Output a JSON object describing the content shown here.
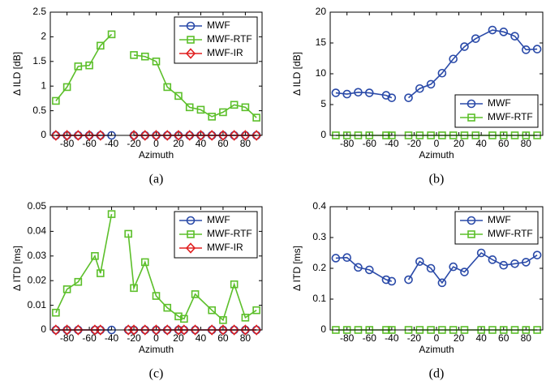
{
  "chart_data": [
    {
      "type": "line",
      "caption": "(a)",
      "xlabel": "Azimuth",
      "ylabel": "Δ ILD [dB]",
      "x": [
        -90,
        -80,
        -70,
        -60,
        -50,
        -40,
        -30,
        -20,
        -10,
        0,
        10,
        20,
        30,
        40,
        50,
        60,
        70,
        80,
        90
      ],
      "xlim": [
        -95,
        95
      ],
      "xticks": [
        -80,
        -60,
        -40,
        -20,
        0,
        20,
        40,
        60,
        80
      ],
      "ylim": [
        0,
        2.5
      ],
      "yticks": [
        0,
        0.5,
        1,
        1.5,
        2,
        2.5
      ],
      "legend": "upper right",
      "series": [
        {
          "name": "MWF",
          "color": "#2a4aa8",
          "marker": "circle",
          "values": [
            0,
            0,
            0,
            0,
            0,
            0,
            null,
            0,
            0,
            0,
            0,
            0,
            0,
            0,
            0,
            0,
            0,
            0,
            0
          ]
        },
        {
          "name": "MWF-RTF",
          "color": "#5cbf2a",
          "marker": "square",
          "values": [
            0.7,
            0.98,
            1.4,
            1.42,
            1.82,
            2.05,
            null,
            1.63,
            1.6,
            1.5,
            0.98,
            0.8,
            0.57,
            0.52,
            0.38,
            0.47,
            0.62,
            0.57,
            0.36
          ]
        },
        {
          "name": "MWF-IR",
          "color": "#e02020",
          "marker": "diamond",
          "values": [
            0,
            0,
            0,
            0,
            0,
            null,
            null,
            0,
            0,
            0,
            0,
            0,
            0,
            0,
            0,
            0,
            0,
            0,
            0
          ]
        }
      ]
    },
    {
      "type": "line",
      "caption": "(b)",
      "xlabel": "Azimuth",
      "ylabel": "Δ ILD [dB]",
      "x": [
        -90,
        -80,
        -70,
        -60,
        -45,
        -40,
        -30,
        -25,
        -15,
        -5,
        5,
        15,
        25,
        35,
        50,
        60,
        70,
        80,
        90
      ],
      "xlim": [
        -95,
        95
      ],
      "xticks": [
        -80,
        -60,
        -40,
        -20,
        0,
        20,
        40,
        60,
        80
      ],
      "ylim": [
        0,
        20
      ],
      "yticks": [
        0,
        5,
        10,
        15,
        20
      ],
      "legend": "lower right",
      "series": [
        {
          "name": "MWF",
          "color": "#2a4aa8",
          "marker": "circle",
          "values": [
            6.9,
            6.7,
            7.0,
            6.9,
            6.5,
            6.1,
            null,
            6.1,
            7.6,
            8.3,
            10.1,
            12.4,
            14.4,
            15.7,
            17.1,
            16.8,
            16.1,
            13.9,
            14.0
          ]
        },
        {
          "name": "MWF-RTF",
          "color": "#5cbf2a",
          "marker": "square",
          "values": [
            0,
            0,
            0,
            0,
            0,
            0,
            null,
            0,
            0,
            0,
            0,
            0,
            0,
            0,
            0,
            0,
            0,
            0,
            0
          ]
        }
      ]
    },
    {
      "type": "line",
      "caption": "(c)",
      "xlabel": "Azimuth",
      "ylabel": "Δ ITD [ms]",
      "x": [
        -90,
        -80,
        -70,
        -55,
        -50,
        -40,
        -30,
        -25,
        -20,
        -10,
        0,
        10,
        20,
        25,
        35,
        50,
        60,
        70,
        80,
        90
      ],
      "xlim": [
        -95,
        95
      ],
      "xticks": [
        -80,
        -60,
        -40,
        -20,
        0,
        20,
        40,
        60,
        80
      ],
      "ylim": [
        0,
        0.05
      ],
      "yticks": [
        0,
        0.01,
        0.02,
        0.03,
        0.04,
        0.05
      ],
      "legend": "upper right",
      "series": [
        {
          "name": "MWF",
          "color": "#2a4aa8",
          "marker": "circle",
          "values": [
            0,
            0,
            0,
            0,
            0,
            0,
            null,
            0,
            0,
            0,
            0,
            0,
            0,
            0,
            0,
            0,
            0,
            0,
            0,
            0
          ]
        },
        {
          "name": "MWF-RTF",
          "color": "#5cbf2a",
          "marker": "square",
          "values": [
            0.007,
            0.0165,
            0.0195,
            0.03,
            0.023,
            0.047,
            null,
            0.039,
            0.017,
            0.0275,
            0.0138,
            0.009,
            0.0055,
            0.0045,
            0.0145,
            0.008,
            0.004,
            0.0185,
            0.005,
            0.008
          ]
        },
        {
          "name": "MWF-IR",
          "color": "#e02020",
          "marker": "diamond",
          "values": [
            0,
            0,
            0,
            0,
            0,
            null,
            null,
            0,
            0,
            0,
            0,
            0,
            0,
            0,
            0,
            0,
            0,
            0,
            0,
            0
          ]
        }
      ]
    },
    {
      "type": "line",
      "caption": "(d)",
      "xlabel": "Azimuth",
      "ylabel": "Δ ITD [ms]",
      "x": [
        -90,
        -80,
        -70,
        -60,
        -45,
        -40,
        -30,
        -25,
        -15,
        -5,
        5,
        15,
        25,
        40,
        50,
        60,
        70,
        80,
        90
      ],
      "xlim": [
        -95,
        95
      ],
      "xticks": [
        -80,
        -60,
        -40,
        -20,
        0,
        20,
        40,
        60,
        80
      ],
      "ylim": [
        0,
        0.4
      ],
      "yticks": [
        0,
        0.1,
        0.2,
        0.3,
        0.4
      ],
      "legend": "upper right",
      "series": [
        {
          "name": "MWF",
          "color": "#2a4aa8",
          "marker": "circle",
          "values": [
            0.233,
            0.235,
            0.203,
            0.195,
            0.163,
            0.158,
            null,
            0.163,
            0.222,
            0.2,
            0.153,
            0.205,
            0.188,
            0.25,
            0.228,
            0.21,
            0.215,
            0.22,
            0.243
          ]
        },
        {
          "name": "MWF-RTF",
          "color": "#5cbf2a",
          "marker": "square",
          "values": [
            0,
            0,
            0,
            0,
            0,
            0,
            null,
            0,
            0,
            0,
            0,
            0,
            0,
            0,
            0,
            0,
            0,
            0,
            0
          ]
        }
      ]
    }
  ]
}
